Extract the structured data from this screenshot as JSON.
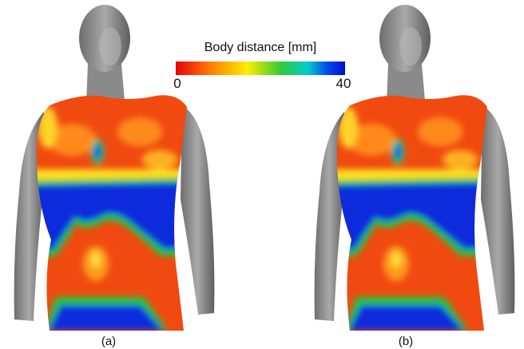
{
  "colorbar": {
    "title": "Body distance [mm]",
    "min": 0,
    "max": 40
  },
  "panels": [
    {
      "caption": "(a)"
    },
    {
      "caption": "(b)"
    }
  ]
}
